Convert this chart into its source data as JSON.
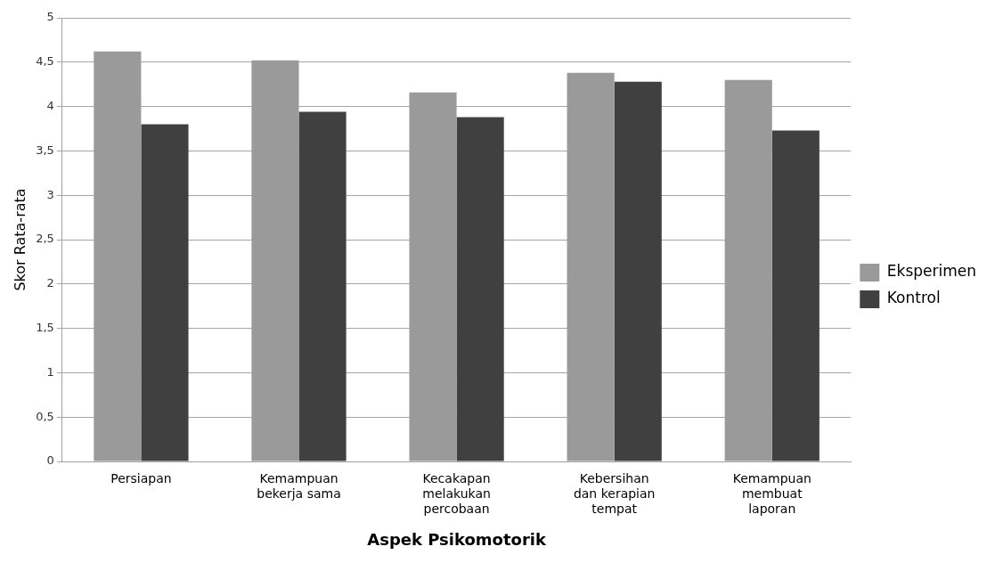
{
  "chart_data": {
    "type": "bar",
    "categories": [
      "Persiapan",
      "Kemampuan bekerja sama",
      "Kecakapan melakukan percobaan",
      "Kebersihan dan kerapian tempat",
      "Kemampuan membuat laporan"
    ],
    "series": [
      {
        "name": "Eksperimen",
        "color": "#9a9a9a",
        "values": [
          4.62,
          4.52,
          4.16,
          4.38,
          4.3
        ]
      },
      {
        "name": "Kontrol",
        "color": "#404040",
        "values": [
          3.8,
          3.94,
          3.88,
          4.28,
          3.73
        ]
      }
    ],
    "xlabel": "Aspek Psikomotorik",
    "ylabel": "Skor Rata-rata",
    "ylim": [
      0,
      5
    ],
    "yticks": [
      {
        "value": 0,
        "label": "0"
      },
      {
        "value": 0.5,
        "label": "0,5"
      },
      {
        "value": 1,
        "label": "1"
      },
      {
        "value": 1.5,
        "label": "1,5"
      },
      {
        "value": 2,
        "label": "2"
      },
      {
        "value": 2.5,
        "label": "2,5"
      },
      {
        "value": 3,
        "label": "3"
      },
      {
        "value": 3.5,
        "label": "3,5"
      },
      {
        "value": 4,
        "label": "4"
      },
      {
        "value": 4.5,
        "label": "4,5"
      },
      {
        "value": 5,
        "label": "5"
      }
    ],
    "grid": "y",
    "legend": "right"
  }
}
